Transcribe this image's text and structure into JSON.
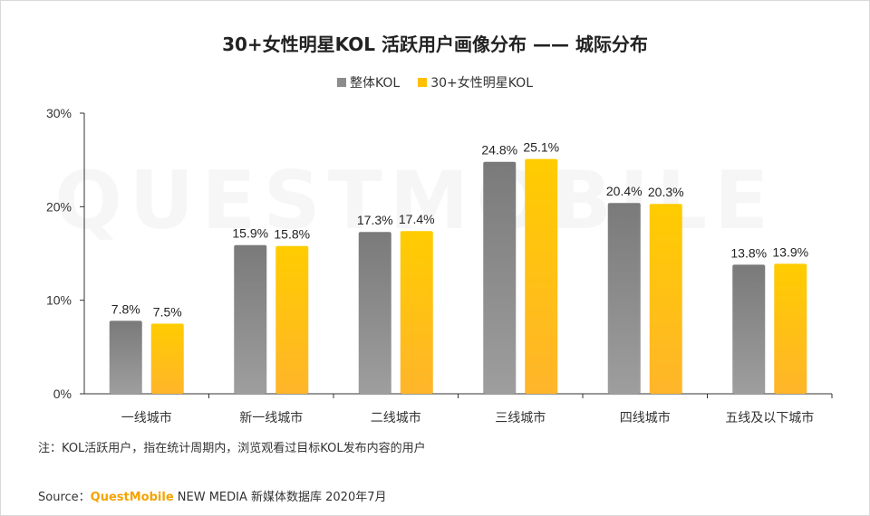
{
  "title": "30+女性明星KOL 活跃用户画像分布 —— 城际分布",
  "legend": [
    {
      "label": "整体KOL",
      "color": "#8c8c8c"
    },
    {
      "label": "30+女性明星KOL",
      "color": "#ffc000"
    }
  ],
  "chart_data": {
    "type": "bar",
    "title": "30+女性明星KOL 活跃用户画像分布 —— 城际分布",
    "categories": [
      "一线城市",
      "新一线城市",
      "二线城市",
      "三线城市",
      "四线城市",
      "五线及以下城市"
    ],
    "series": [
      {
        "name": "整体KOL",
        "values": [
          7.8,
          15.9,
          17.3,
          24.8,
          20.4,
          13.8
        ],
        "color": "#8c8c8c"
      },
      {
        "name": "30+女性明星KOL",
        "values": [
          7.5,
          15.8,
          17.4,
          25.1,
          20.3,
          13.9
        ],
        "color": "#ffc000"
      }
    ],
    "value_labels": [
      [
        "7.8%",
        "15.9%",
        "17.3%",
        "24.8%",
        "20.4%",
        "13.8%"
      ],
      [
        "7.5%",
        "15.8%",
        "17.4%",
        "25.1%",
        "20.3%",
        "13.9%"
      ]
    ],
    "yticks": [
      "0%",
      "10%",
      "20%",
      "30%"
    ],
    "ytick_values": [
      0,
      10,
      20,
      30
    ],
    "ylim": [
      0,
      30
    ],
    "xlabel": "",
    "ylabel": "",
    "grid": false,
    "legend_position": "top-center"
  },
  "watermark": "QUESTMOBILE",
  "note": "注：KOL活跃用户，指在统计周期内，浏览观看过目标KOL发布内容的用户",
  "source": {
    "prefix": "Source：",
    "brand": "QuestMobile",
    "suffix": " NEW MEDIA 新媒体数据库 2020年7月"
  }
}
